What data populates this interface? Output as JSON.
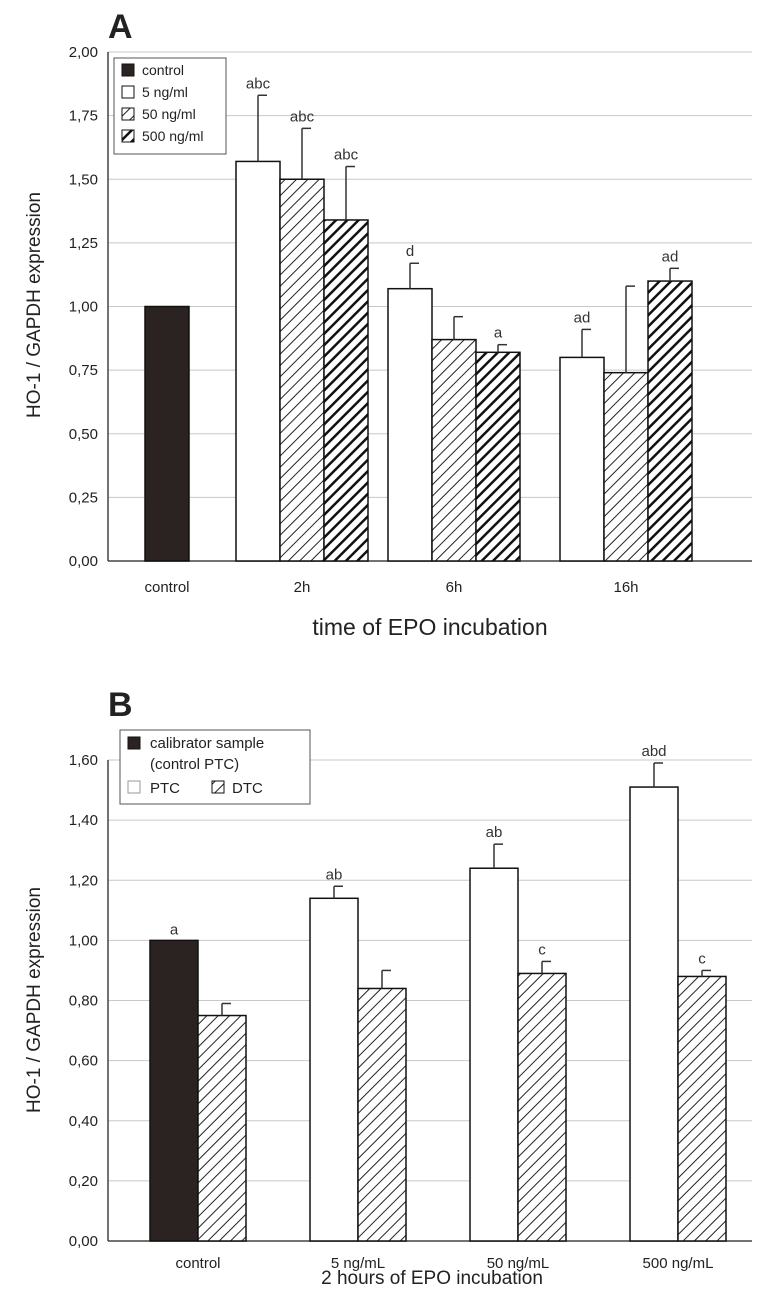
{
  "chart_data": [
    {
      "panel": "A",
      "type": "bar",
      "ylabel": "HO-1 / GAPDH expression",
      "xlabel": "time of EPO incubation",
      "ylim": [
        0,
        2.0
      ],
      "yticks": [
        "0,00",
        "0,25",
        "0,50",
        "0,75",
        "1,00",
        "1,25",
        "1,50",
        "1,75",
        "2,00"
      ],
      "grid": true,
      "legend_position": "top-left",
      "legend": [
        "control",
        "5 ng/ml",
        "50 ng/ml",
        "500 ng/ml"
      ],
      "groups": [
        {
          "label": "control",
          "bars": [
            {
              "series": "control",
              "value": 1.0,
              "error": null,
              "annotation": ""
            }
          ]
        },
        {
          "label": "2h",
          "bars": [
            {
              "series": "5 ng/ml",
              "value": 1.57,
              "error": 0.26,
              "annotation": "abc"
            },
            {
              "series": "50 ng/ml",
              "value": 1.5,
              "error": 0.2,
              "annotation": "abc"
            },
            {
              "series": "500 ng/ml",
              "value": 1.34,
              "error": 0.21,
              "annotation": "abc"
            }
          ]
        },
        {
          "label": "6h",
          "bars": [
            {
              "series": "5 ng/ml",
              "value": 1.07,
              "error": 0.1,
              "annotation": "d"
            },
            {
              "series": "50 ng/ml",
              "value": 0.87,
              "error": 0.09,
              "annotation": ""
            },
            {
              "series": "500 ng/ml",
              "value": 0.82,
              "error": 0.03,
              "annotation": "a"
            }
          ]
        },
        {
          "label": "16h",
          "bars": [
            {
              "series": "5 ng/ml",
              "value": 0.8,
              "error": 0.11,
              "annotation": "ad"
            },
            {
              "series": "50 ng/ml",
              "value": 0.74,
              "error": 0.34,
              "annotation": ""
            },
            {
              "series": "500 ng/ml",
              "value": 1.1,
              "error": 0.05,
              "annotation": "ad"
            }
          ]
        }
      ]
    },
    {
      "panel": "B",
      "type": "bar",
      "ylabel": "HO-1 / GAPDH expression",
      "xlabel": "2 hours of EPO incubation",
      "ylim": [
        0,
        1.6
      ],
      "yticks": [
        "0,00",
        "0,20",
        "0,40",
        "0,60",
        "0,80",
        "1,00",
        "1,20",
        "1,40",
        "1,60"
      ],
      "grid": true,
      "legend_position": "top-left",
      "legend": [
        "calibrator sample",
        "(control PTC)",
        "PTC",
        "DTC"
      ],
      "groups": [
        {
          "label": "control",
          "bars": [
            {
              "series": "calibrator sample",
              "value": 1.0,
              "error": null,
              "annotation": "a"
            },
            {
              "series": "DTC",
              "value": 0.75,
              "error": 0.04,
              "annotation": ""
            }
          ]
        },
        {
          "label": "5 ng/mL",
          "bars": [
            {
              "series": "PTC",
              "value": 1.14,
              "error": 0.04,
              "annotation": "ab"
            },
            {
              "series": "DTC",
              "value": 0.84,
              "error": 0.06,
              "annotation": ""
            }
          ]
        },
        {
          "label": "50 ng/mL",
          "bars": [
            {
              "series": "PTC",
              "value": 1.24,
              "error": 0.08,
              "annotation": "ab"
            },
            {
              "series": "DTC",
              "value": 0.89,
              "error": 0.04,
              "annotation": "c"
            }
          ]
        },
        {
          "label": "500 ng/mL",
          "bars": [
            {
              "series": "PTC",
              "value": 1.51,
              "error": 0.08,
              "annotation": "abd"
            },
            {
              "series": "DTC",
              "value": 0.88,
              "error": 0.02,
              "annotation": "c"
            }
          ]
        }
      ]
    }
  ],
  "colors": {
    "control_fill": "#2b2321",
    "white_fill": "#ffffff",
    "stroke": "#111111",
    "grid": "#c8c8c8",
    "error_bar": "#333333"
  }
}
